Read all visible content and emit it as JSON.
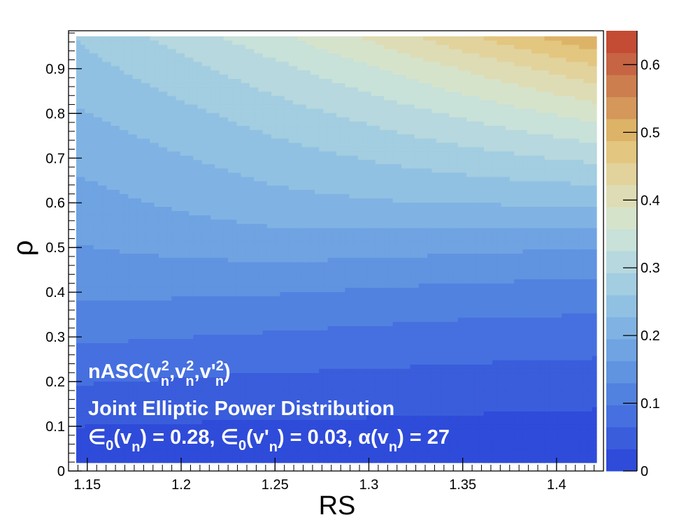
{
  "chart_data": {
    "type": "heatmap",
    "subtype": "filled-contour",
    "xlabel": "RS",
    "ylabel": "ρ",
    "xlim": [
      1.14,
      1.425
    ],
    "ylim": [
      0.0,
      0.985
    ],
    "x_ticks": [
      1.15,
      1.2,
      1.25,
      1.3,
      1.35,
      1.4
    ],
    "x_tick_labels": [
      "1.15",
      "1.2",
      "1.25",
      "1.3",
      "1.35",
      "1.4"
    ],
    "y_ticks": [
      0,
      0.1,
      0.2,
      0.3,
      0.4,
      0.5,
      0.6,
      0.7,
      0.8,
      0.9
    ],
    "y_tick_labels": [
      "0",
      "0.1",
      "0.2",
      "0.3",
      "0.4",
      "0.5",
      "0.6",
      "0.7",
      "0.8",
      "0.9"
    ],
    "colorbar": {
      "zlim": [
        0,
        0.65
      ],
      "levels": 20,
      "ticks": [
        0,
        0.1,
        0.2,
        0.3,
        0.4,
        0.5,
        0.6
      ],
      "tick_labels": [
        "0",
        "0.1",
        "0.2",
        "0.3",
        "0.4",
        "0.5",
        "0.6"
      ],
      "colors": [
        "#2f4bd9",
        "#3a5ddc",
        "#4670df",
        "#5282df",
        "#6093e0",
        "#6fa3e2",
        "#80b3e3",
        "#91c1e2",
        "#a3cde0",
        "#b6d8de",
        "#c8e1d9",
        "#d6e3cb",
        "#dedcb4",
        "#e2d29c",
        "#e3c67f",
        "#ddb367",
        "#d5975a",
        "#cc7e4f",
        "#c66444",
        "#c44b34"
      ]
    },
    "surface_samples": {
      "x": [
        1.14,
        1.2,
        1.25,
        1.3,
        1.35,
        1.425
      ],
      "y": [
        0.0,
        0.1,
        0.2,
        0.3,
        0.4,
        0.5,
        0.6,
        0.7,
        0.8,
        0.9,
        0.985
      ],
      "z_rows": [
        [
          0.0,
          0.0,
          0.0,
          0.0,
          0.0,
          0.0
        ],
        [
          0.033,
          0.03,
          0.028,
          0.027,
          0.025,
          0.022
        ],
        [
          0.068,
          0.062,
          0.058,
          0.056,
          0.053,
          0.049
        ],
        [
          0.104,
          0.098,
          0.093,
          0.088,
          0.083,
          0.079
        ],
        [
          0.137,
          0.135,
          0.132,
          0.126,
          0.12,
          0.115
        ],
        [
          0.16,
          0.171,
          0.177,
          0.175,
          0.17,
          0.163
        ],
        [
          0.181,
          0.201,
          0.216,
          0.224,
          0.229,
          0.233
        ],
        [
          0.201,
          0.225,
          0.245,
          0.262,
          0.278,
          0.302
        ],
        [
          0.222,
          0.251,
          0.277,
          0.303,
          0.331,
          0.374
        ],
        [
          0.243,
          0.281,
          0.315,
          0.352,
          0.392,
          0.452
        ],
        [
          0.262,
          0.311,
          0.356,
          0.404,
          0.458,
          0.537
        ]
      ]
    },
    "annotations": [
      {
        "parts": [
          "nASC(v",
          "2",
          "n",
          ",v",
          "2",
          "n",
          ",v'",
          "2",
          "n",
          ")"
        ]
      },
      {
        "text": "Joint Elliptic Power Distribution"
      },
      {
        "parts": [
          "∈",
          "0",
          "(v",
          "n",
          ") = 0.28,  ∈",
          "0",
          "(v'",
          "n",
          ") = 0.03,  α(v",
          "n",
          ") = 27"
        ]
      }
    ]
  }
}
